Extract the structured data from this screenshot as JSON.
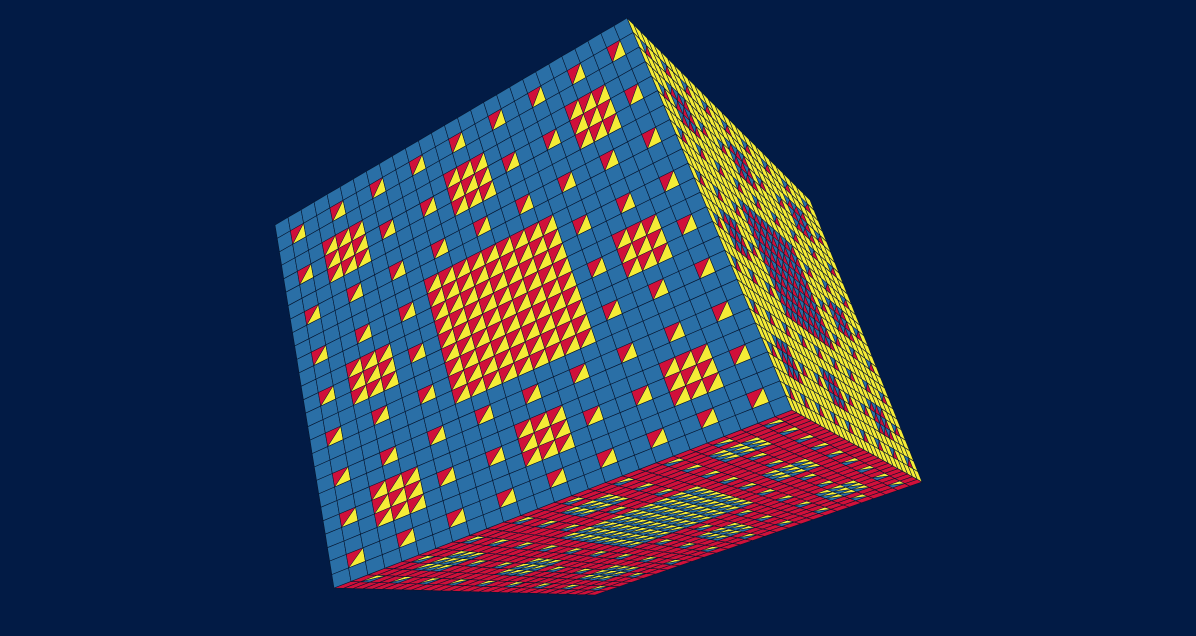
{
  "scene": {
    "object": "menger-sponge",
    "level": 3,
    "grid_cells_per_face": 27,
    "colors": {
      "background": "#021b45",
      "face_front": "#2a6fa6",
      "face_right": "#f5ec36",
      "face_bottom": "#d0103a",
      "hole_wall_a": "#d0103a",
      "hole_wall_b": "#f5ec36",
      "grid_line": "#06152e"
    }
  }
}
